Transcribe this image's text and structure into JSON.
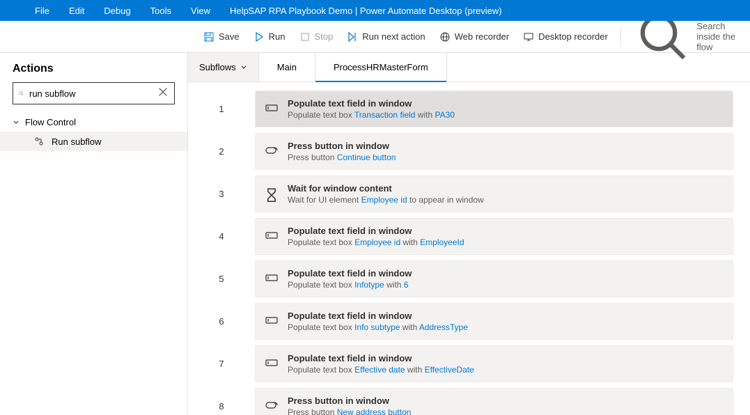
{
  "window_title": "SAP RPA Playbook Demo | Power Automate Desktop (preview)",
  "menubar": [
    "File",
    "Edit",
    "Debug",
    "Tools",
    "View",
    "Help"
  ],
  "toolbar": {
    "save": "Save",
    "run": "Run",
    "stop": "Stop",
    "run_next": "Run next action",
    "web_recorder": "Web recorder",
    "desktop_recorder": "Desktop recorder",
    "search_placeholder": "Search inside the flow"
  },
  "sidebar": {
    "title": "Actions",
    "search_value": "run subflow",
    "group": "Flow Control",
    "item": "Run subflow"
  },
  "tabs": {
    "subflows": "Subflows",
    "main": "Main",
    "active": "ProcessHRMasterForm"
  },
  "actions": [
    {
      "n": "1",
      "icon": "textfield",
      "title": "Populate text field in window",
      "desc": [
        {
          "t": "Populate text box "
        },
        {
          "t": "Transaction field",
          "l": true
        },
        {
          "t": " with "
        },
        {
          "t": "PA30",
          "l": true
        }
      ],
      "selected": true
    },
    {
      "n": "2",
      "icon": "button",
      "title": "Press button in window",
      "desc": [
        {
          "t": "Press button "
        },
        {
          "t": "Continue button",
          "l": true
        }
      ]
    },
    {
      "n": "3",
      "icon": "wait",
      "title": "Wait for window content",
      "desc": [
        {
          "t": "Wait for UI element "
        },
        {
          "t": "Employee id",
          "l": true
        },
        {
          "t": " to appear in window"
        }
      ]
    },
    {
      "n": "4",
      "icon": "textfield",
      "title": "Populate text field in window",
      "desc": [
        {
          "t": "Populate text box "
        },
        {
          "t": "Employee id",
          "l": true
        },
        {
          "t": " with   "
        },
        {
          "t": "EmployeeId",
          "l": true
        }
      ]
    },
    {
      "n": "5",
      "icon": "textfield",
      "title": "Populate text field in window",
      "desc": [
        {
          "t": "Populate text box "
        },
        {
          "t": "Infotype",
          "l": true
        },
        {
          "t": " with "
        },
        {
          "t": "6",
          "l": true
        }
      ]
    },
    {
      "n": "6",
      "icon": "textfield",
      "title": "Populate text field in window",
      "desc": [
        {
          "t": "Populate text box "
        },
        {
          "t": "Info subtype",
          "l": true
        },
        {
          "t": " with   "
        },
        {
          "t": "AddressType",
          "l": true
        }
      ]
    },
    {
      "n": "7",
      "icon": "textfield",
      "title": "Populate text field in window",
      "desc": [
        {
          "t": "Populate text box "
        },
        {
          "t": "Effective date",
          "l": true
        },
        {
          "t": " with   "
        },
        {
          "t": "EffectiveDate",
          "l": true
        }
      ]
    },
    {
      "n": "8",
      "icon": "button",
      "title": "Press button in window",
      "desc": [
        {
          "t": "Press button "
        },
        {
          "t": "New address button",
          "l": true
        }
      ]
    }
  ],
  "colors": {
    "accent": "#0078d4",
    "bg_card": "#f3f2f1",
    "text": "#323130",
    "text_muted": "#605e5c"
  }
}
